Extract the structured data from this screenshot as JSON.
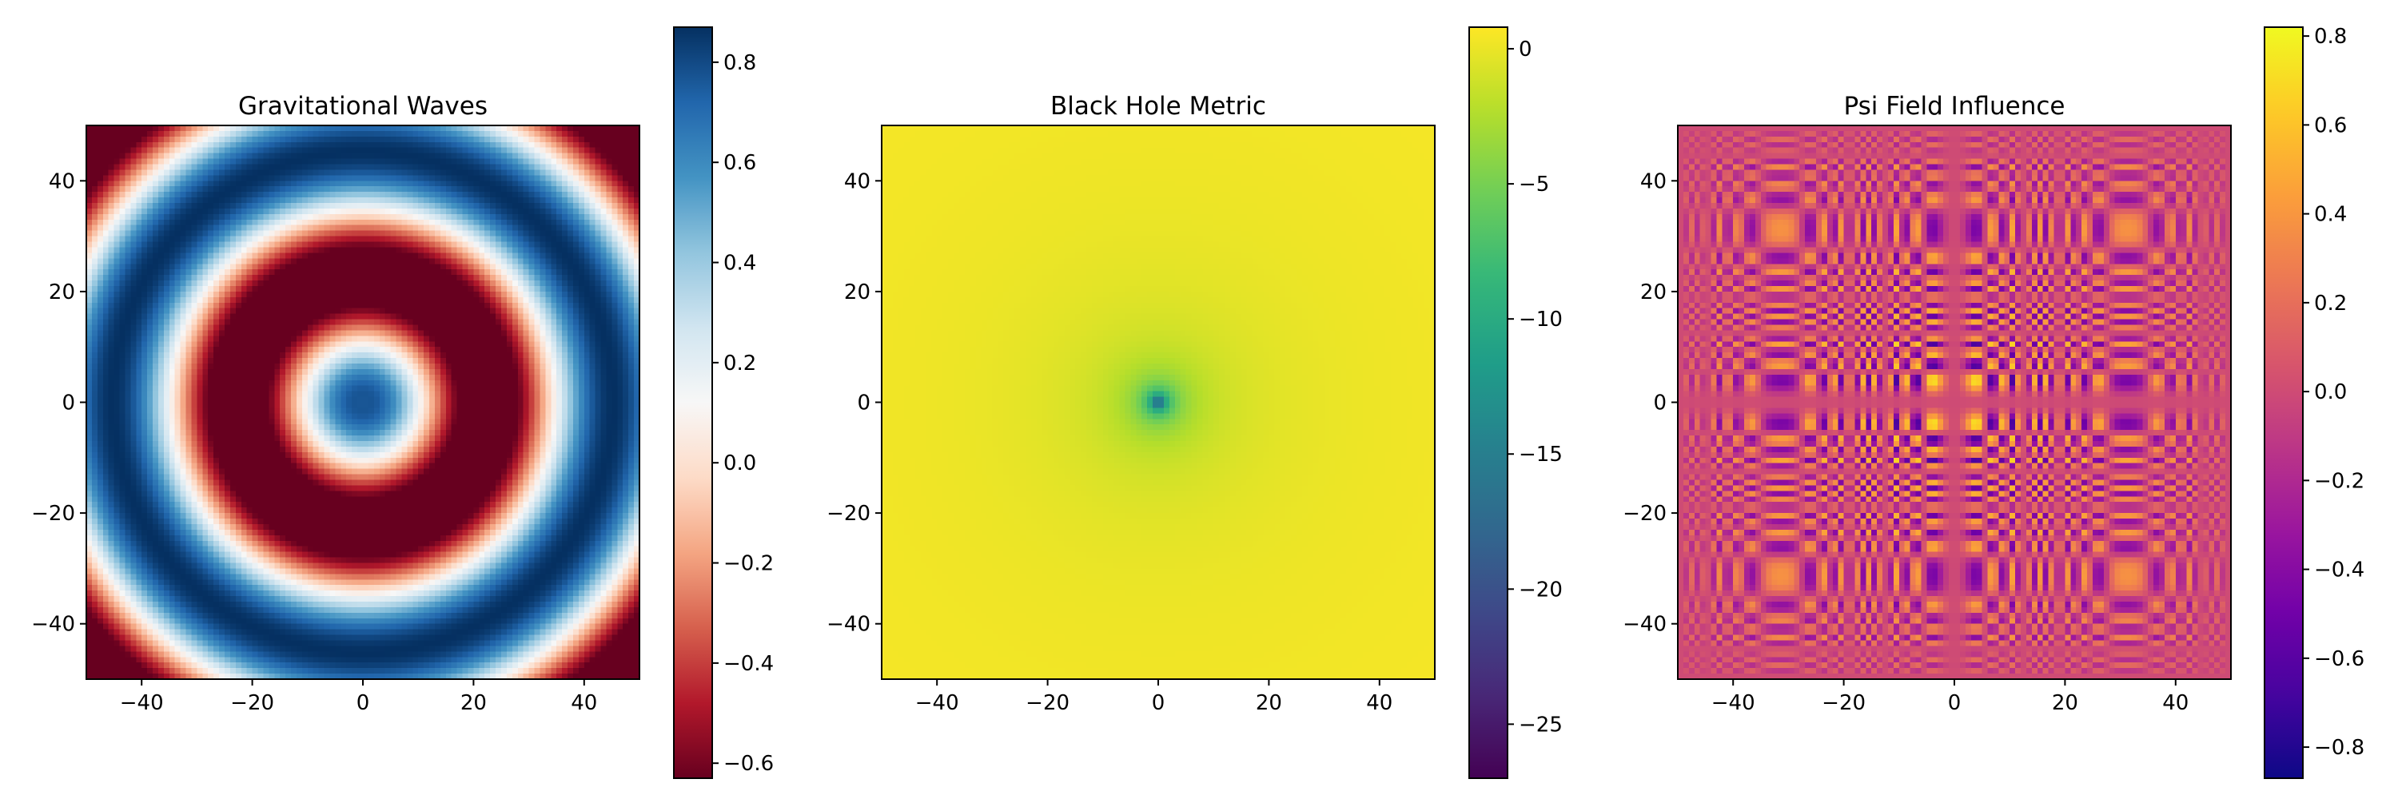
{
  "chart_data": [
    {
      "type": "heatmap",
      "title": "Gravitational Waves",
      "xlabel": "",
      "ylabel": "",
      "xlim": [
        -50,
        50
      ],
      "ylim": [
        -50,
        50
      ],
      "x_ticks": [
        -40,
        -20,
        0,
        20,
        40
      ],
      "y_ticks": [
        -40,
        -20,
        0,
        20,
        40
      ],
      "x_tick_labels": [
        "−40",
        "−20",
        "0",
        "20",
        "40"
      ],
      "y_tick_labels": [
        "−40",
        "−20",
        "0",
        "20",
        "40"
      ],
      "colormap": "RdBu",
      "colorbar_range": [
        -0.63,
        0.87
      ],
      "colorbar_ticks": [
        -0.6,
        -0.4,
        -0.2,
        0.0,
        0.2,
        0.4,
        0.6,
        0.8
      ],
      "colorbar_tick_labels": [
        "−0.6",
        "−0.4",
        "−0.2",
        "0.0",
        "0.2",
        "0.4",
        "0.6",
        "0.8"
      ],
      "grid_resolution": 100,
      "field": "cos(r/7) with slight center dip; r = sqrt(x^2 + y^2)"
    },
    {
      "type": "heatmap",
      "title": "Black Hole Metric",
      "xlabel": "",
      "ylabel": "",
      "xlim": [
        -50,
        50
      ],
      "ylim": [
        -50,
        50
      ],
      "x_ticks": [
        -40,
        -20,
        0,
        20,
        40
      ],
      "y_ticks": [
        -40,
        -20,
        0,
        20,
        40
      ],
      "x_tick_labels": [
        "−40",
        "−20",
        "0",
        "20",
        "40"
      ],
      "y_tick_labels": [
        "−40",
        "−20",
        "0",
        "20",
        "40"
      ],
      "colormap": "viridis",
      "colorbar_range": [
        -27,
        0.8
      ],
      "colorbar_ticks": [
        -25,
        -20,
        -15,
        -10,
        -5,
        0
      ],
      "colorbar_tick_labels": [
        "−25",
        "−20",
        "−15",
        "−10",
        "−5",
        "0"
      ],
      "grid_resolution": 100,
      "field": "1 - 27/r, minimum at center"
    },
    {
      "type": "heatmap",
      "title": "Psi Field Influence",
      "xlabel": "",
      "ylabel": "",
      "xlim": [
        -50,
        50
      ],
      "ylim": [
        -50,
        50
      ],
      "x_ticks": [
        -40,
        -20,
        0,
        20,
        40
      ],
      "y_ticks": [
        -40,
        -20,
        0,
        20,
        40
      ],
      "x_tick_labels": [
        "−40",
        "−20",
        "0",
        "20",
        "40"
      ],
      "y_tick_labels": [
        "−40",
        "−20",
        "0",
        "20",
        "40"
      ],
      "colormap": "plasma",
      "colorbar_range": [
        -0.87,
        0.82
      ],
      "colorbar_ticks": [
        -0.8,
        -0.6,
        -0.4,
        -0.2,
        0.0,
        0.2,
        0.4,
        0.6,
        0.8
      ],
      "colorbar_tick_labels": [
        "−0.8",
        "−0.6",
        "−0.4",
        "−0.2",
        "0.0",
        "0.2",
        "0.4",
        "0.6",
        "0.8"
      ],
      "grid_resolution": 100,
      "field": "sin(x^2/10) * sin(y^2/10) * exp(-r/60)"
    }
  ]
}
